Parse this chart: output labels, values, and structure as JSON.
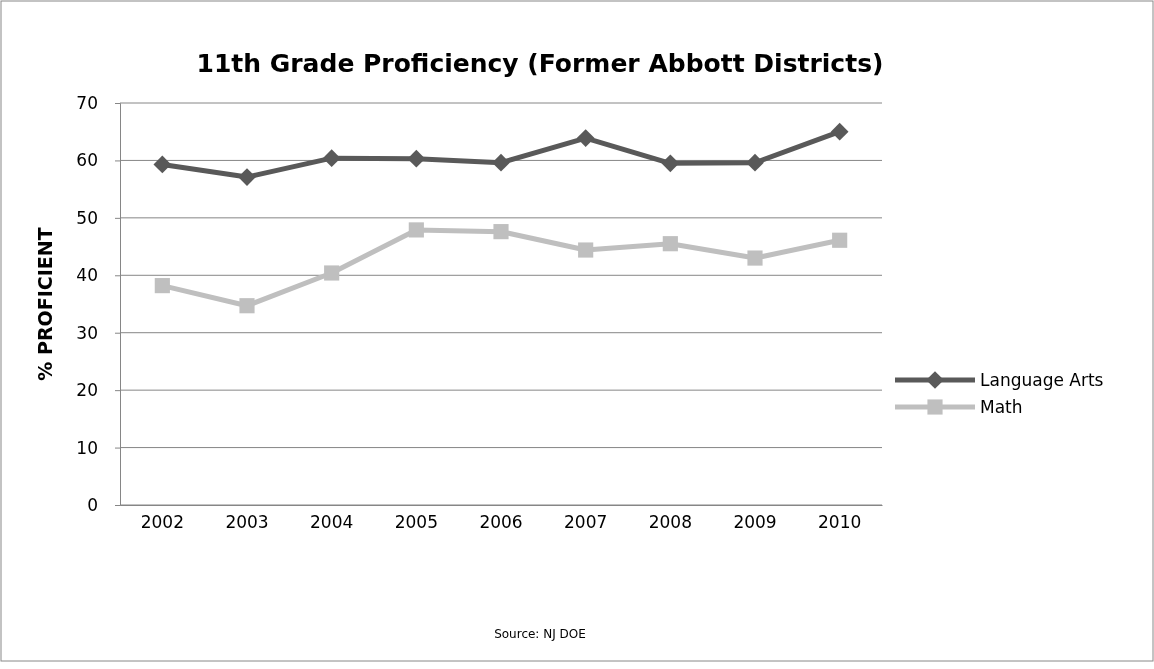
{
  "chart_data": {
    "type": "line",
    "title": "11th Grade Proficiency (Former Abbott Districts)",
    "ylabel": "% PROFICIENT",
    "categories": [
      "2002",
      "2003",
      "2004",
      "2005",
      "2006",
      "2007",
      "2008",
      "2009",
      "2010"
    ],
    "series": [
      {
        "name": "Language Arts",
        "color": "#595959",
        "marker": "diamond",
        "values": [
          59.3,
          57.1,
          60.4,
          60.3,
          59.6,
          63.9,
          59.5,
          59.6,
          65.0
        ]
      },
      {
        "name": "Math",
        "color": "#bfbfbf",
        "marker": "square",
        "values": [
          38.2,
          34.7,
          40.4,
          47.9,
          47.6,
          44.4,
          45.5,
          43.0,
          46.1
        ]
      }
    ],
    "ylim": [
      0,
      70
    ],
    "yticks": [
      0,
      10,
      20,
      30,
      40,
      50,
      60,
      70
    ],
    "grid": "y",
    "legend": "right",
    "line_style": "solid",
    "annotations": [
      "Source: NJ DOE"
    ]
  }
}
